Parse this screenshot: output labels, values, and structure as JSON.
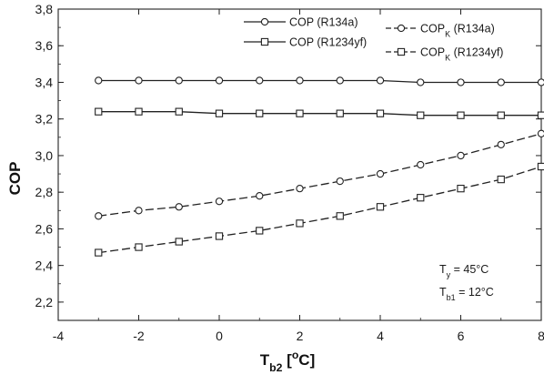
{
  "chart_data": {
    "type": "line",
    "title": "",
    "xlabel": {
      "main": "T",
      "sub": "b2",
      "rest": " [",
      "sup": "o",
      "end": "C]"
    },
    "ylabel": "COP",
    "xlim": [
      -4,
      8
    ],
    "ylim": [
      2.1,
      3.8
    ],
    "xticks": [
      "-4",
      "-2",
      "0",
      "2",
      "4",
      "6",
      "8"
    ],
    "xtick_values": [
      -4,
      -2,
      0,
      2,
      4,
      6,
      8
    ],
    "yticks": [
      "2,2",
      "2,4",
      "2,6",
      "2,8",
      "3,0",
      "3,2",
      "3,4",
      "3,6",
      "3,8"
    ],
    "ytick_values": [
      2.2,
      2.4,
      2.6,
      2.8,
      3.0,
      3.2,
      3.4,
      3.6,
      3.8
    ],
    "grid": false,
    "legend_position": "top",
    "x": [
      -3,
      -2,
      -1,
      0,
      1,
      2,
      3,
      4,
      5,
      6,
      7,
      8
    ],
    "series": [
      {
        "name": "COP (R134a)",
        "label_parts": {
          "main": "COP (R134a)",
          "sub": ""
        },
        "marker": "circle",
        "dash": "solid",
        "values": [
          3.41,
          3.41,
          3.41,
          3.41,
          3.41,
          3.41,
          3.41,
          3.41,
          3.4,
          3.4,
          3.4,
          3.4
        ]
      },
      {
        "name": "COP (R1234yf)",
        "label_parts": {
          "main": "COP (R1234yf)",
          "sub": ""
        },
        "marker": "square",
        "dash": "solid",
        "values": [
          3.24,
          3.24,
          3.24,
          3.23,
          3.23,
          3.23,
          3.23,
          3.23,
          3.22,
          3.22,
          3.22,
          3.22
        ]
      },
      {
        "name": "COPK (R134a)",
        "label_parts": {
          "main": "COP",
          "sub": "K",
          "rest": " (R134a)"
        },
        "marker": "circle",
        "dash": "dashed",
        "values": [
          2.67,
          2.7,
          2.72,
          2.75,
          2.78,
          2.82,
          2.86,
          2.9,
          2.95,
          3.0,
          3.06,
          3.12
        ]
      },
      {
        "name": "COPK (R1234yf)",
        "label_parts": {
          "main": "COP",
          "sub": "K",
          "rest": " (R1234yf)"
        },
        "marker": "square",
        "dash": "dashed",
        "values": [
          2.47,
          2.5,
          2.53,
          2.56,
          2.59,
          2.63,
          2.67,
          2.72,
          2.77,
          2.82,
          2.87,
          2.94
        ]
      }
    ],
    "annotations": [
      {
        "main": "T",
        "sub": "y",
        "rest": " = 45°C"
      },
      {
        "main": "T",
        "sub": "b1",
        "rest": " = 12°C"
      }
    ]
  }
}
